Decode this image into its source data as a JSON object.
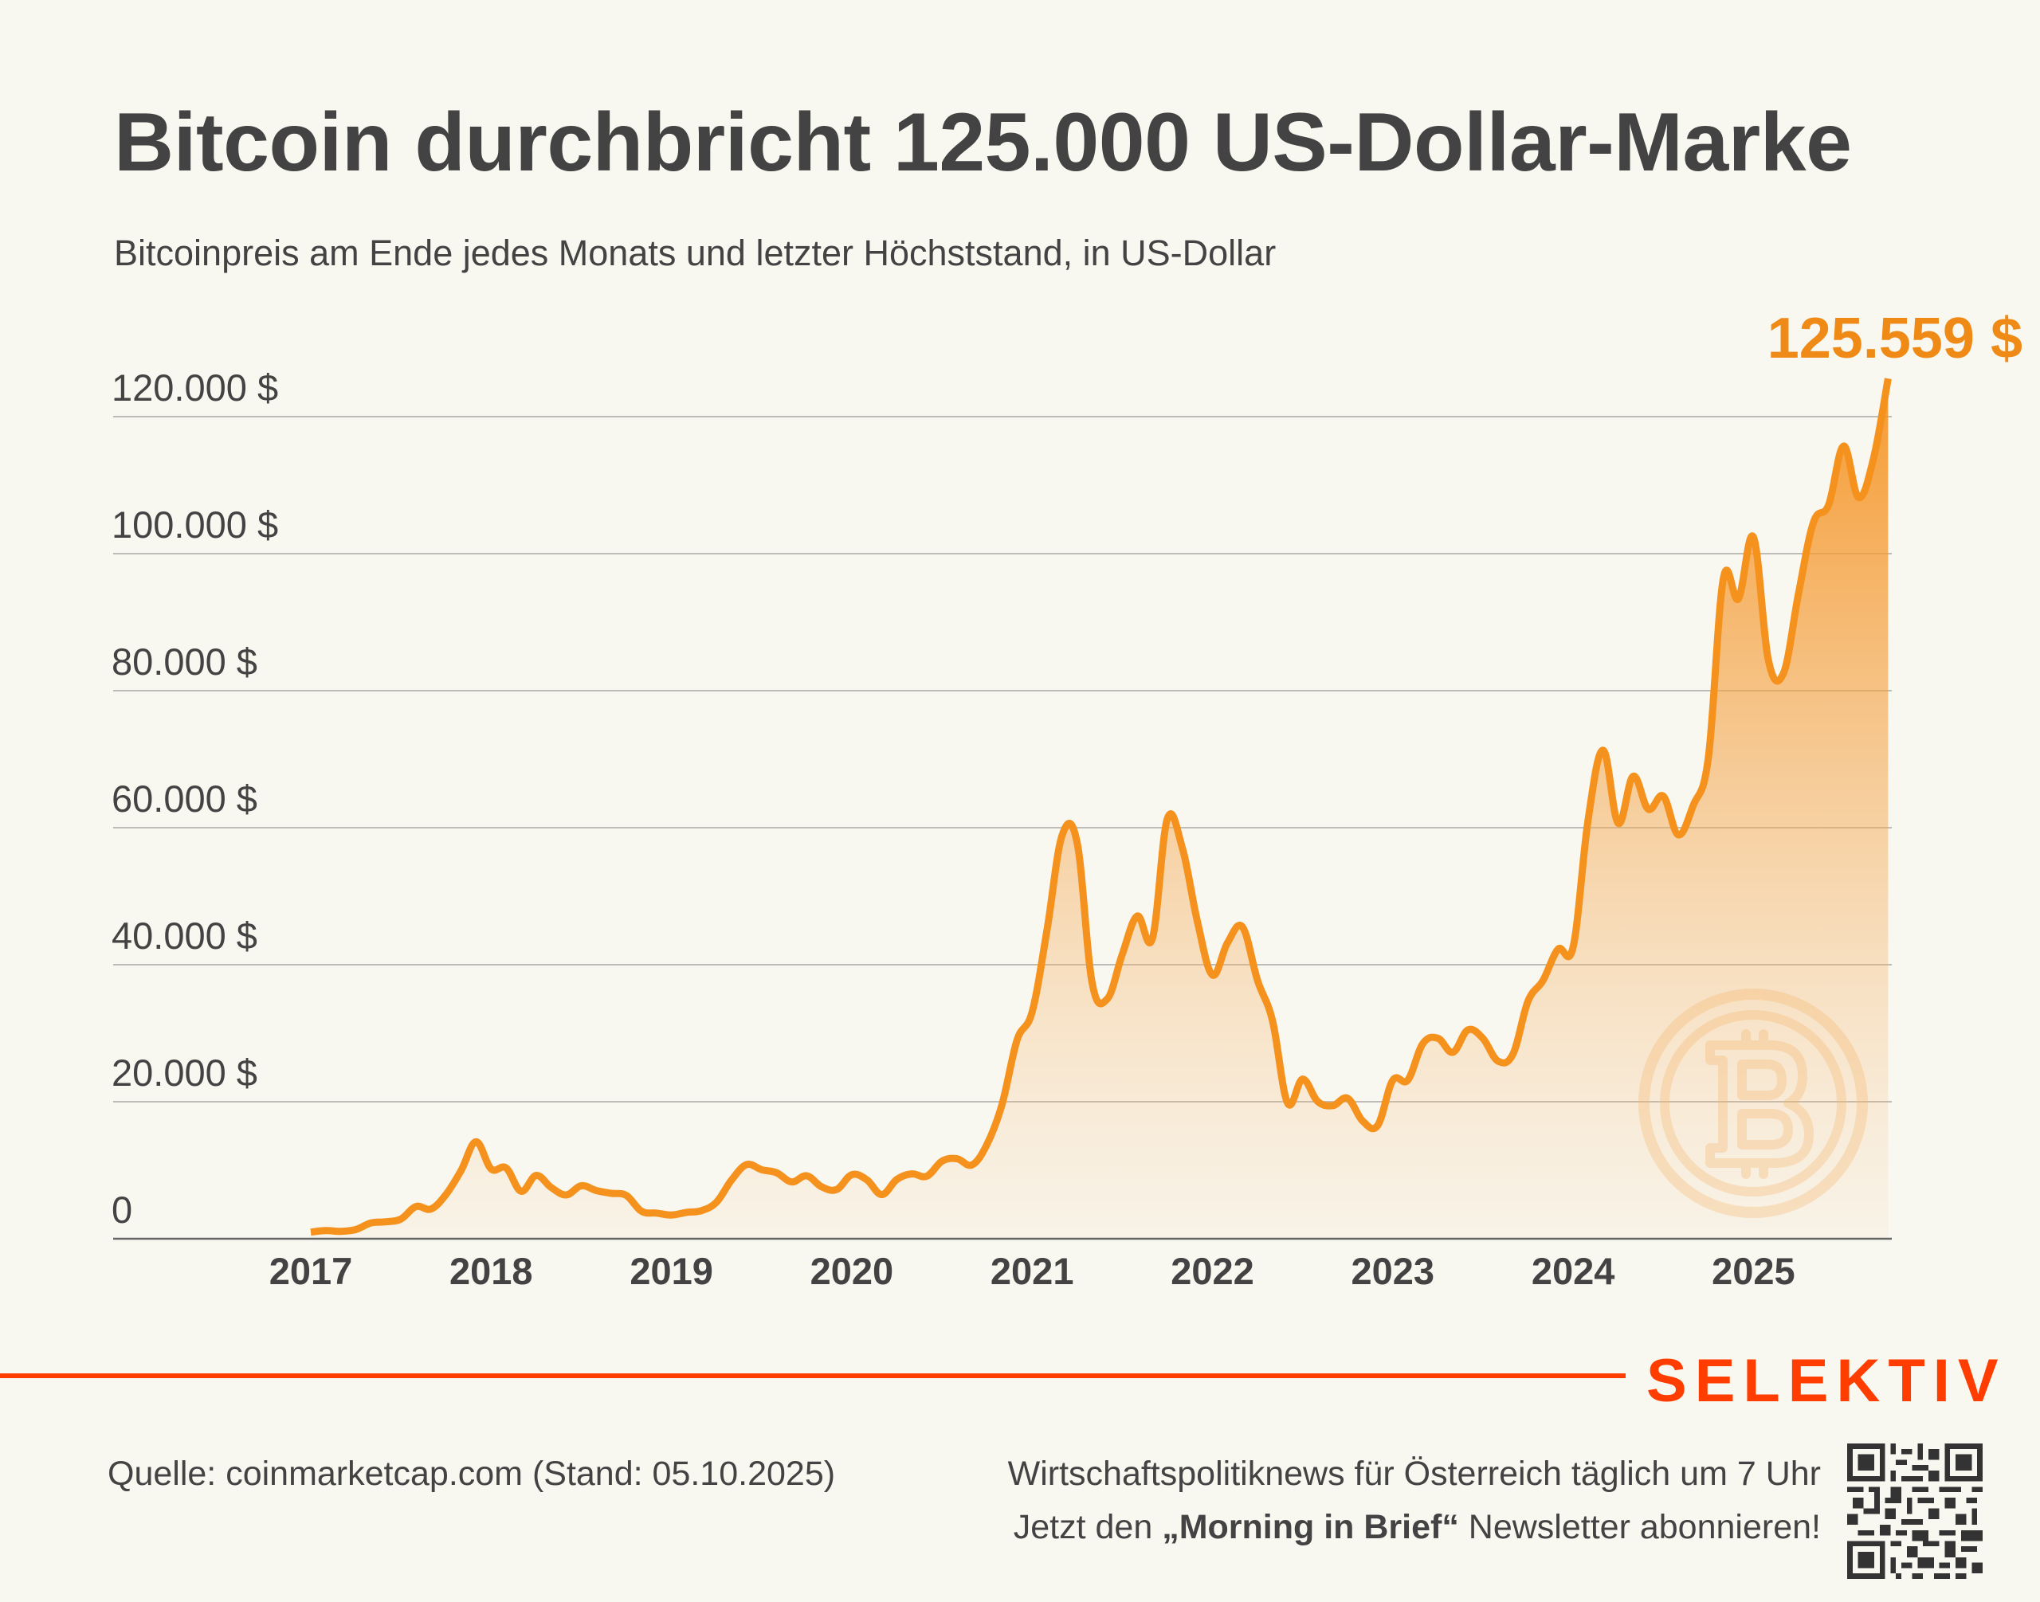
{
  "header": {
    "title": "Bitcoin durchbricht 125.000 US-Dollar-Marke",
    "subtitle": "Bitcoinpreis am Ende jedes Monats und letzter Höchststand, in US-Dollar"
  },
  "colors": {
    "line": "#f5921e",
    "fill_top": "#f5921e",
    "peak_label": "#ef8a17",
    "brand": "#ff3d00",
    "text": "#434343",
    "background": "#f8f7f0",
    "grid": "#bdbcb6"
  },
  "chart_data": {
    "type": "area",
    "title": "Bitcoin durchbricht 125.000 US-Dollar-Marke",
    "subtitle": "Bitcoinpreis am Ende jedes Monats und letzter Höchststand, in US-Dollar",
    "xlabel": "",
    "ylabel": "US-Dollar",
    "ylim": [
      0,
      125559
    ],
    "yticks": [
      0,
      20000,
      40000,
      60000,
      80000,
      100000,
      120000
    ],
    "ytick_labels": [
      "0",
      "20.000 $",
      "40.000 $",
      "60.000 $",
      "80.000 $",
      "100.000 $",
      "120.000 $"
    ],
    "xticks": [
      "2017",
      "2018",
      "2019",
      "2020",
      "2021",
      "2022",
      "2023",
      "2024",
      "2025"
    ],
    "xlim": [
      "2017-01",
      "2025-10-05"
    ],
    "grid": true,
    "peak_annotation": "125.559 $",
    "peak_value": 125559,
    "series": [
      {
        "name": "Bitcoinpreis",
        "start": "2017-01",
        "frequency": "monthly",
        "values": [
          970,
          1190,
          1080,
          1350,
          2300,
          2480,
          2875,
          4700,
          4340,
          6470,
          9950,
          14150,
          10200,
          10330,
          6930,
          9240,
          7490,
          6400,
          7730,
          7030,
          6630,
          6320,
          4020,
          3740,
          3460,
          3850,
          4100,
          5350,
          8570,
          10820,
          10080,
          9630,
          8290,
          9200,
          7570,
          7190,
          9350,
          8600,
          6440,
          8660,
          9460,
          9140,
          11320,
          11680,
          10780,
          13780,
          19630,
          29000,
          33100,
          45200,
          58900,
          57750,
          37300,
          35000,
          41500,
          47100,
          43800,
          61300,
          57000,
          46300,
          38500,
          43200,
          45500,
          37700,
          31800,
          19800,
          23300,
          20050,
          19430,
          20500,
          17170,
          16550,
          23140,
          23150,
          28480,
          29270,
          27220,
          30480,
          29230,
          25930,
          26970,
          34670,
          37720,
          42270,
          42580,
          61200,
          71300,
          60640,
          67500,
          62700,
          64600,
          58970,
          63300,
          70200,
          96400,
          93400,
          102400,
          84370,
          82550,
          94200,
          104600,
          107100,
          115700,
          108200,
          114000,
          125559
        ],
        "end_label": "125.559 $ (Höchststand, 05.10.2025)"
      }
    ]
  },
  "footer": {
    "brand": "SELEKTIV",
    "source": "Quelle: coinmarketcap.com (Stand: 05.10.2025)",
    "promo_line1": "Wirtschaftspolitiknews für Österreich täglich um 7 Uhr",
    "promo_line2_pre": "Jetzt den ",
    "promo_line2_bold": "„Morning in Brief“",
    "promo_line2_post": " Newsletter abonnieren!",
    "qr_icon": "qr-code-icon"
  },
  "watermark": {
    "icon": "bitcoin-coin-icon"
  }
}
